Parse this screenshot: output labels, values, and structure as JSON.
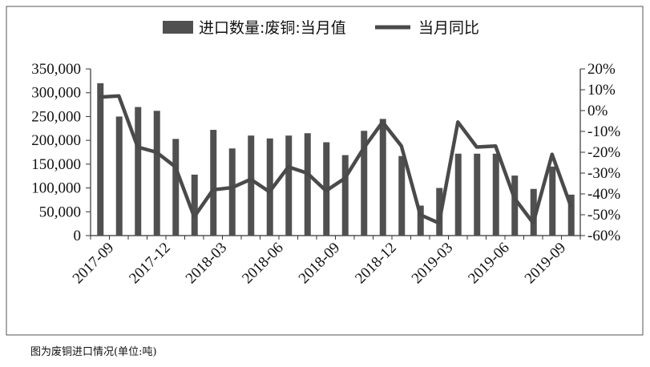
{
  "chart_data": {
    "type": "bar",
    "caption": "图为废铜进口情况(单位:吨)",
    "legend": {
      "placement": "top",
      "bar_label": "进口数量:废铜:当月值",
      "line_label": "当月同比"
    },
    "x_tick_labels": [
      "2017-09",
      "2017-12",
      "2018-03",
      "2018-06",
      "2018-09",
      "2018-12",
      "2019-03",
      "2019-06",
      "2019-09"
    ],
    "x": [
      "2017-09",
      "2017-10",
      "2017-11",
      "2017-12",
      "2018-01",
      "2018-02",
      "2018-03",
      "2018-04",
      "2018-05",
      "2018-06",
      "2018-07",
      "2018-08",
      "2018-09",
      "2018-10",
      "2018-11",
      "2018-12",
      "2019-01",
      "2019-02",
      "2019-03",
      "2019-04",
      "2019-05",
      "2019-06",
      "2019-07",
      "2019-08",
      "2019-09",
      "2019-10"
    ],
    "y_left": {
      "ylim": [
        0,
        350000
      ],
      "ticks": [
        "0",
        "50,000",
        "100,000",
        "150,000",
        "200,000",
        "250,000",
        "300,000",
        "350,000"
      ]
    },
    "y_right": {
      "ylim": [
        -60,
        20
      ],
      "ticks": [
        "-60%",
        "-50%",
        "-40%",
        "-30%",
        "-20%",
        "-10%",
        "0%",
        "10%",
        "20%"
      ]
    },
    "series": [
      {
        "name": "进口数量:废铜:当月值",
        "type": "bar",
        "axis": "left",
        "color": "#505050",
        "values": [
          320000,
          250000,
          270000,
          262000,
          203000,
          128000,
          222000,
          183000,
          210000,
          204000,
          210000,
          215000,
          196000,
          169000,
          220000,
          245000,
          167000,
          63000,
          100000,
          172000,
          172000,
          172000,
          126000,
          98000,
          145000,
          86000
        ]
      },
      {
        "name": "当月同比",
        "type": "line",
        "axis": "right",
        "color": "#4a4a4a",
        "values": [
          6.5,
          7.0,
          -17.5,
          -20.0,
          -27.0,
          -51.0,
          -38.0,
          -37.0,
          -33.0,
          -39.0,
          -27.0,
          -30.0,
          -38.5,
          -32.5,
          -18.0,
          -5.5,
          -17.0,
          -50.0,
          -54.0,
          -5.5,
          -17.5,
          -17.0,
          -42.0,
          -54.0,
          -21.0,
          -46.0
        ]
      }
    ],
    "grid": false
  }
}
